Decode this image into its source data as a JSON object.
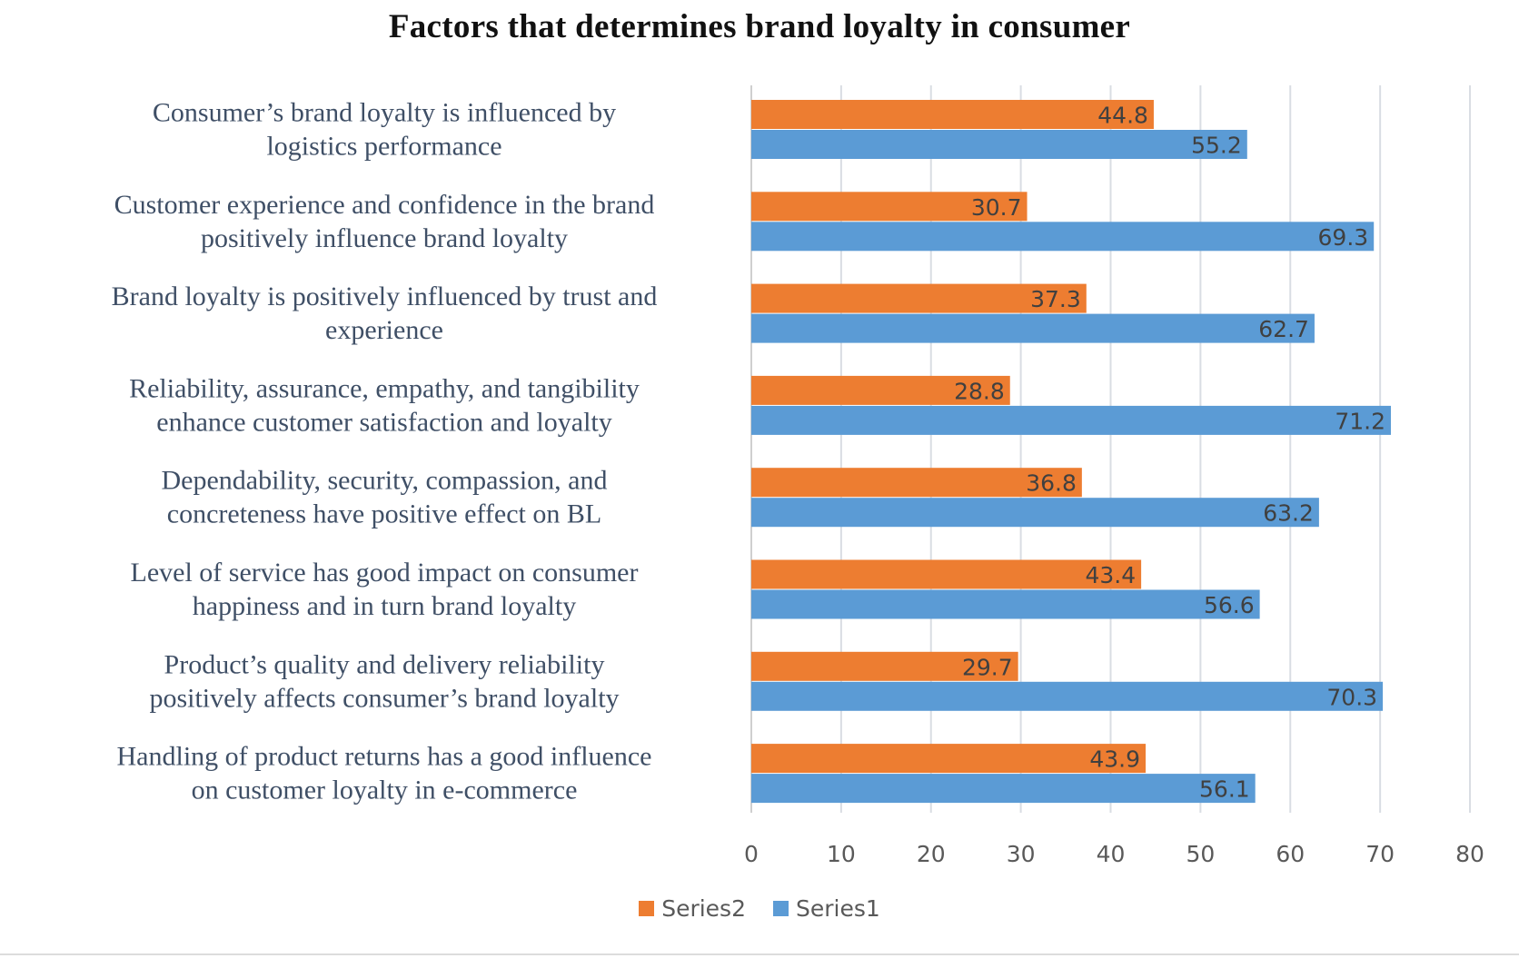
{
  "chart_data": {
    "type": "bar",
    "orientation": "horizontal",
    "title": "Factors that determines brand loyalty in consumer",
    "categories": [
      [
        "Consumer’s brand loyalty is influenced by",
        "logistics performance"
      ],
      [
        "Customer experience and confidence in the brand",
        "positively influence brand loyalty"
      ],
      [
        "Brand loyalty is positively influenced by trust and",
        "experience"
      ],
      [
        "Reliability, assurance, empathy, and tangibility",
        "enhance customer satisfaction and loyalty"
      ],
      [
        "Dependability, security, compassion, and",
        "concreteness have positive effect on BL"
      ],
      [
        "Level of service has good impact on consumer",
        "happiness and in turn brand loyalty"
      ],
      [
        "Product’s quality and delivery reliability",
        "positively affects consumer’s brand loyalty"
      ],
      [
        "Handling of product returns has a good influence",
        "on customer loyalty in e-commerce"
      ]
    ],
    "series": [
      {
        "name": "Series2",
        "color": "#ED7D31",
        "values": [
          44.8,
          30.7,
          37.3,
          28.8,
          36.8,
          43.4,
          29.7,
          43.9
        ]
      },
      {
        "name": "Series1",
        "color": "#5B9BD5",
        "values": [
          55.2,
          69.3,
          62.7,
          71.2,
          63.2,
          56.6,
          70.3,
          56.1
        ]
      }
    ],
    "xlim": [
      0,
      80
    ],
    "xticks": [
      0,
      10,
      20,
      30,
      40,
      50,
      60,
      70,
      80
    ],
    "grid": true,
    "legend_position": "bottom",
    "data_labels": true,
    "xlabel": "",
    "ylabel": ""
  }
}
